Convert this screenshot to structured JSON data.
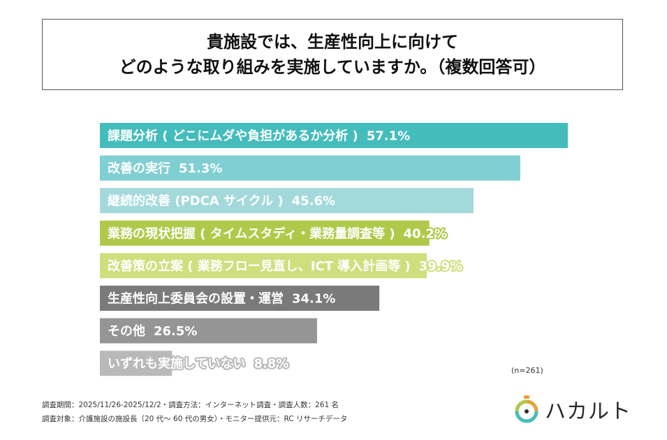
{
  "title": {
    "line1": "貴施設では、生産性向上に向けて",
    "line2": "どのような取り組みを実施していますか。（複数回答可）"
  },
  "chart_data": {
    "type": "bar",
    "orientation": "horizontal",
    "categories": [
      "課題分析 ( どこにムダや負担があるか分析 )",
      "改善の実行",
      "継続的改善 (PDCA サイクル )",
      "業務の現状把握 ( タイムスタディ・業務量調査等 )",
      "改善策の立案 ( 業務フロー見直し、ICT 導入計画等 )",
      "生産性向上委員会の設置・運営",
      "その他",
      "いずれも実施していない"
    ],
    "values": [
      57.1,
      51.3,
      45.6,
      40.2,
      39.9,
      34.1,
      26.5,
      8.8
    ],
    "value_labels": [
      "57.1%",
      "51.3%",
      "45.6%",
      "40.2%",
      "39.9%",
      "34.1%",
      "26.5%",
      "8.8%"
    ],
    "colors": [
      "#45bcbc",
      "#80cfd2",
      "#a3d9db",
      "#b1c94a",
      "#cfdf7e",
      "#7a7a7a",
      "#959595",
      "#b9b9b9"
    ],
    "xlim": [
      0,
      57.1
    ],
    "grid": false,
    "legend": "none"
  },
  "sample_note": "(n=261)",
  "footnotes": [
    "調査期間：2025/11/26-2025/12/2・調査方法：インターネット調査・調査人数：261 名",
    "調査対象：介護施設の施設長（20 代〜 60 代の男女）・モニター提供元：RC リサーチデータ"
  ],
  "logo": {
    "text": "ハカルト",
    "colors": [
      "#45bcbc",
      "#e8a23a",
      "#b1c94a"
    ]
  }
}
